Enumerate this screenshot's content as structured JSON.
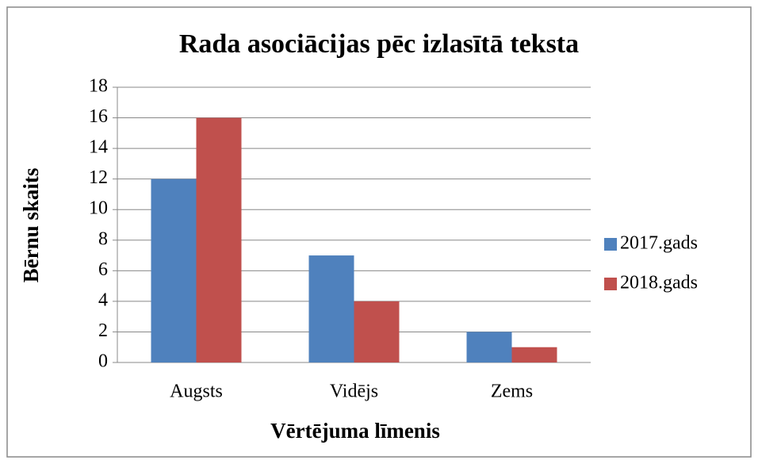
{
  "chart_data": {
    "type": "bar",
    "title": "Rada asociācijas pēc izlasītā teksta",
    "x_label": "Vērtējuma līmenis",
    "y_label": "Bērnu skaits",
    "categories": [
      "Augsts",
      "Vidējs",
      "Zems"
    ],
    "series": [
      {
        "name": "2017.gads",
        "color": "#4f81bd",
        "values": [
          12,
          7,
          2
        ]
      },
      {
        "name": "2018.gads",
        "color": "#c0504d",
        "values": [
          16,
          4,
          1
        ]
      }
    ],
    "ylim": [
      0,
      18
    ],
    "yticks": [
      0,
      2,
      4,
      6,
      8,
      10,
      12,
      14,
      16,
      18
    ],
    "grid": true,
    "legend": "right"
  }
}
